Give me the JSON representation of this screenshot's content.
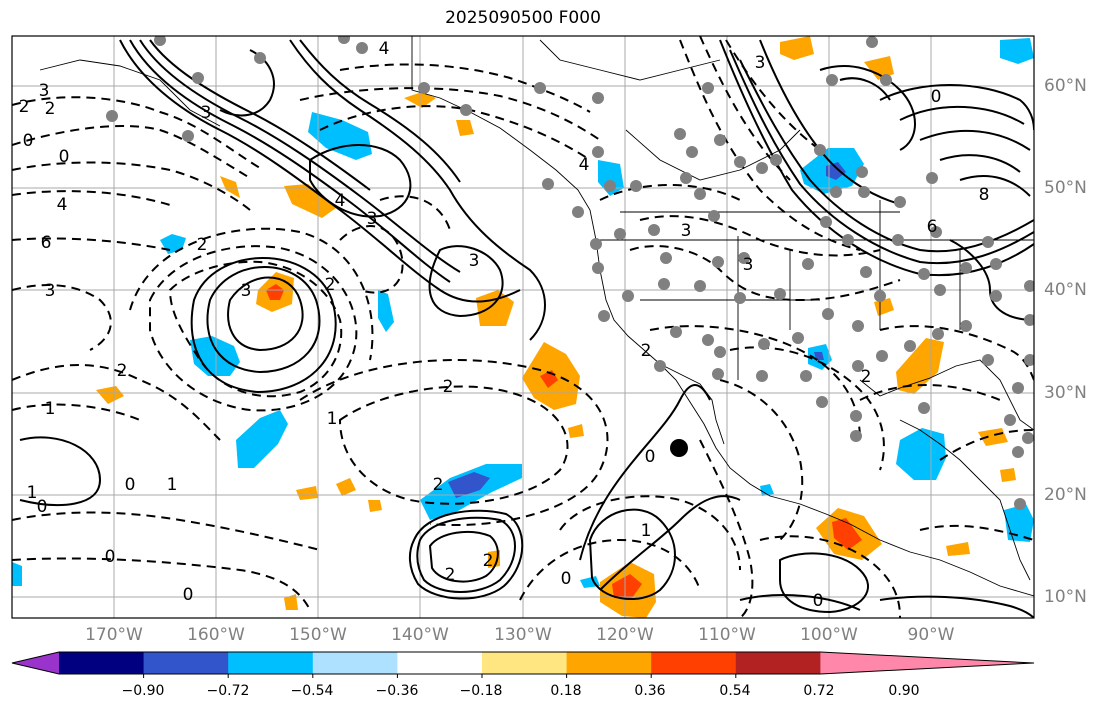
{
  "title": "2025090500 F000",
  "lat_labels": [
    "60°N",
    "50°N",
    "40°N",
    "30°N",
    "20°N",
    "10°N"
  ],
  "lon_labels": [
    "170°W",
    "160°W",
    "150°W",
    "140°W",
    "130°W",
    "120°W",
    "110°W",
    "100°W",
    "90°W"
  ],
  "colorbar": {
    "colors": [
      "#9933cc",
      "#000080",
      "#3355cc",
      "#00bfff",
      "#aee0ff",
      "#ffffff",
      "#ffe680",
      "#ffa500",
      "#ff4000",
      "#b22222",
      "#ff88aa"
    ],
    "tick_labels": [
      "−0.90",
      "−0.72",
      "−0.54",
      "−0.36",
      "−0.18",
      "0.18",
      "0.36",
      "0.54",
      "0.72",
      "0.90"
    ]
  },
  "contour_labels": [
    "4",
    "3",
    "2",
    "2",
    "3",
    "0",
    "4",
    "6",
    "3",
    "0",
    "4",
    "3",
    "3",
    "3",
    "2",
    "2",
    "2",
    "1",
    "1",
    "0",
    "0",
    "0",
    "0",
    "1",
    "2",
    "2",
    "2",
    "1",
    "0",
    "1",
    "0",
    "2",
    "4",
    "3",
    "6",
    "8",
    "0",
    "2",
    "3",
    "3",
    "2",
    "0"
  ],
  "marker_color": "#000000"
}
